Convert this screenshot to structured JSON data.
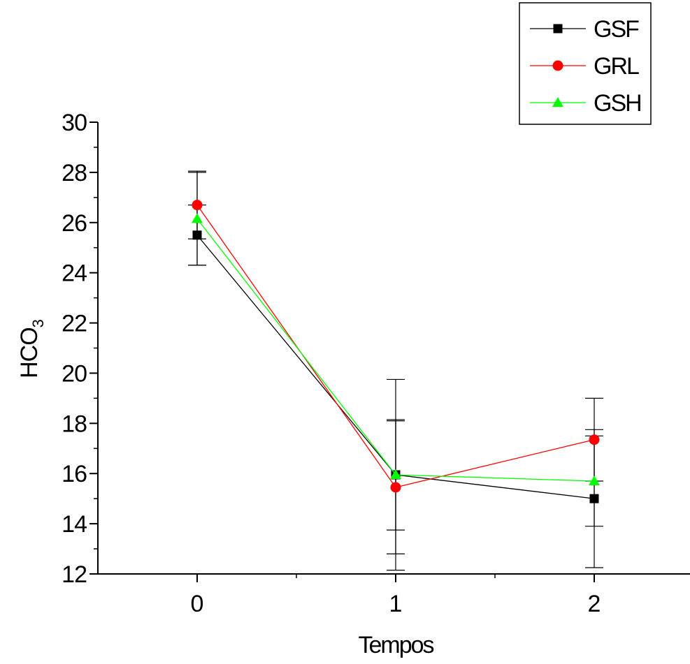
{
  "chart_data": {
    "type": "line",
    "title": "",
    "xlabel": "Tempos",
    "ylabel": "HCO",
    "ylabel_subscript": "3",
    "x": [
      0,
      1,
      2
    ],
    "x_tick_labels": [
      "0",
      "1",
      "2"
    ],
    "xlim": [
      -0.5,
      2.5
    ],
    "ylim": [
      12,
      30
    ],
    "y_ticks": [
      12,
      14,
      16,
      18,
      20,
      22,
      24,
      26,
      28,
      30
    ],
    "y_tick_labels": [
      "12",
      "14",
      "16",
      "18",
      "20",
      "22",
      "24",
      "26",
      "28",
      "30"
    ],
    "grid": false,
    "legend_position": "top-right, outside plot area",
    "series": [
      {
        "name": "GSF",
        "color": "#000000",
        "marker": "square",
        "values": [
          25.5,
          15.95,
          15.0
        ],
        "error": [
          1.2,
          3.8,
          2.75
        ]
      },
      {
        "name": "GRL",
        "color": "#ff0000",
        "marker": "circle",
        "values": [
          26.7,
          15.45,
          17.35
        ],
        "error": [
          1.35,
          2.65,
          1.65
        ]
      },
      {
        "name": "GSH",
        "color": "#00ff00",
        "marker": "triangle",
        "values": [
          26.15,
          15.95,
          15.7
        ],
        "error": [
          1.85,
          2.2,
          1.8
        ]
      }
    ]
  }
}
